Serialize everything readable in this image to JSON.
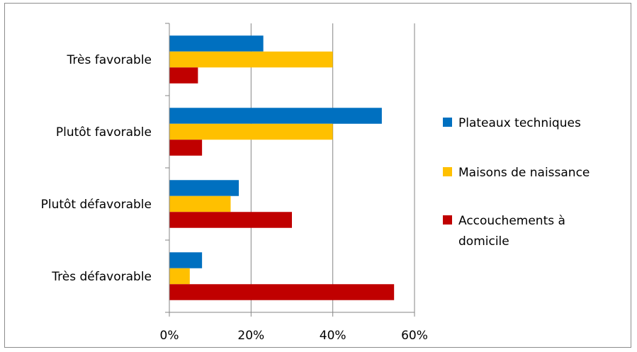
{
  "chart_data": {
    "type": "bar",
    "orientation": "horizontal",
    "categories": [
      "Très favorable",
      "Plutôt favorable",
      "Plutôt défavorable",
      "Très défavorable"
    ],
    "series": [
      {
        "name": "Plateaux techniques",
        "color": "#0070C0",
        "values": [
          0.23,
          0.52,
          0.17,
          0.08
        ]
      },
      {
        "name": "Maisons de naissance",
        "color": "#FFC000",
        "values": [
          0.4,
          0.4,
          0.15,
          0.05
        ]
      },
      {
        "name": "Accouchements à domicile",
        "color": "#C00000",
        "values": [
          0.07,
          0.08,
          0.3,
          0.55
        ]
      }
    ],
    "xlim": [
      0,
      0.6
    ],
    "xticks": [
      0,
      0.2,
      0.4,
      0.6
    ],
    "xtick_labels": [
      "0%",
      "20%",
      "40%",
      "60%"
    ],
    "grid": "vertical",
    "legend": "right"
  }
}
